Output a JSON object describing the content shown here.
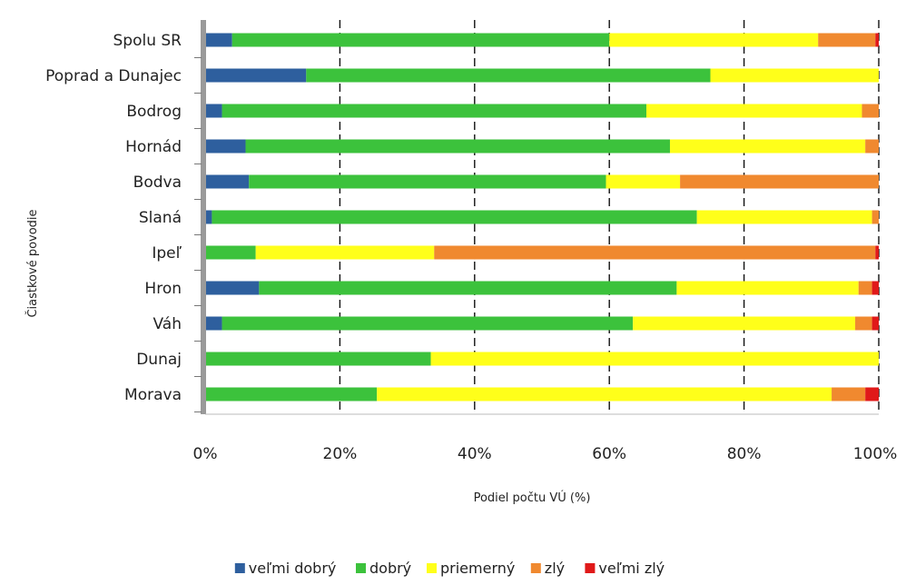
{
  "chart_data": {
    "type": "bar",
    "orientation": "horizontal",
    "stacked": true,
    "percent": true,
    "title": "",
    "xlabel": "Podiel počtu VÚ (%)",
    "ylabel": "Čiastkové povodie",
    "xlim": [
      0,
      100
    ],
    "x_ticks": [
      "0%",
      "20%",
      "40%",
      "60%",
      "80%",
      "100%"
    ],
    "grid": "vertical dashed",
    "legend_position": "bottom",
    "categories": [
      "Spolu SR",
      "Poprad a Dunajec",
      "Bodrog",
      "Hornád",
      "Bodva",
      "Slaná",
      "Ipeľ",
      "Hron",
      "Váh",
      "Dunaj",
      "Morava"
    ],
    "series": [
      {
        "name": "veľmi dobrý",
        "color": "#2e5f9e",
        "values": [
          4,
          15,
          2.5,
          6,
          6.5,
          1,
          0,
          8,
          2.5,
          0,
          0
        ]
      },
      {
        "name": "dobrý",
        "color": "#3cc23c",
        "values": [
          56,
          60,
          63,
          63,
          53,
          72,
          7.5,
          62,
          61,
          33.5,
          25.5
        ]
      },
      {
        "name": "priemerný",
        "color": "#ffff1a",
        "values": [
          31,
          25,
          32,
          29,
          11,
          26,
          26.5,
          27,
          33,
          66.5,
          67.5
        ]
      },
      {
        "name": "zlý",
        "color": "#f0892f",
        "values": [
          8.5,
          0,
          2.5,
          2,
          29.5,
          1,
          65.5,
          2,
          2.5,
          0,
          5
        ]
      },
      {
        "name": "veľmi zlý",
        "color": "#e01919",
        "values": [
          0.5,
          0,
          0,
          0,
          0,
          0,
          0.5,
          1,
          1,
          0,
          2
        ]
      }
    ]
  }
}
